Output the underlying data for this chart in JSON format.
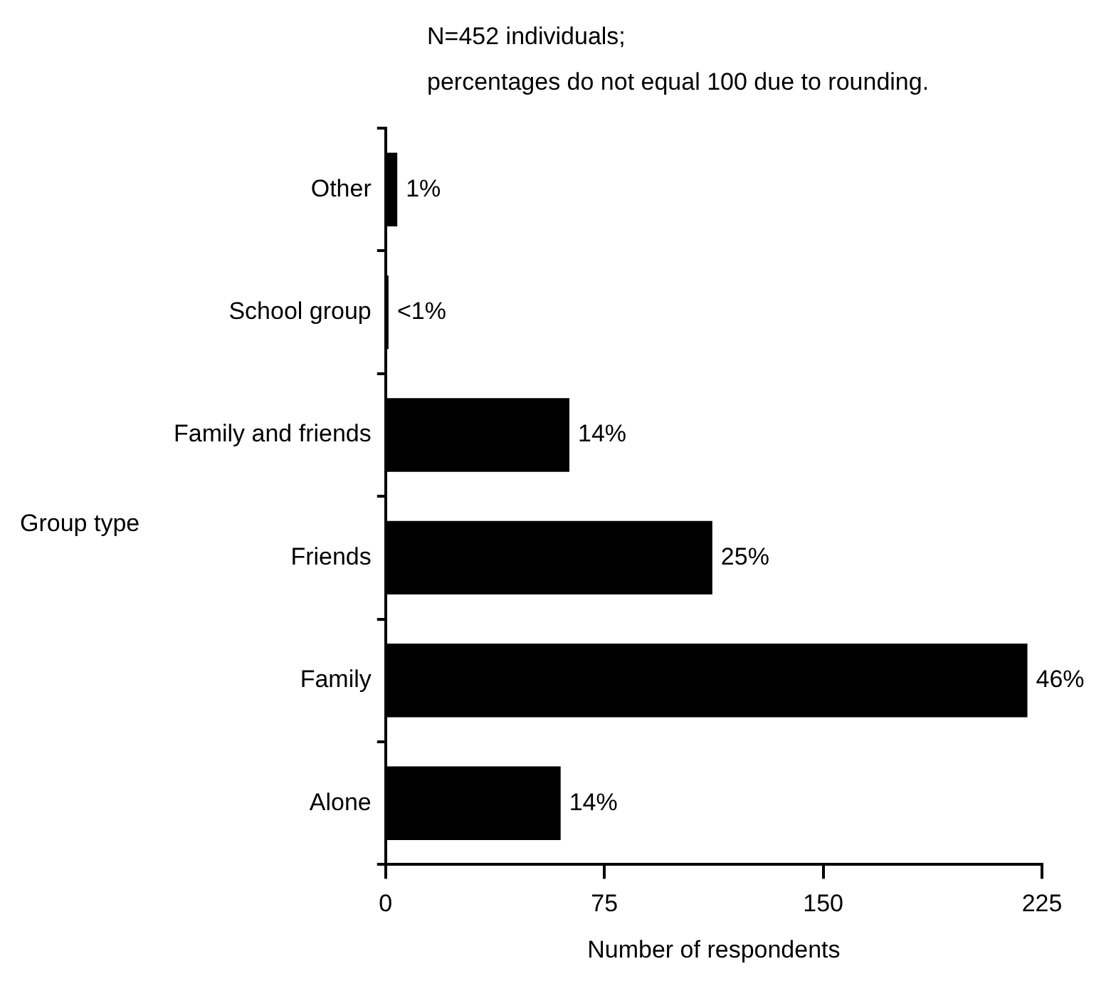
{
  "chart_data": {
    "type": "bar",
    "orientation": "horizontal",
    "categories": [
      "Other",
      "School group",
      "Family and friends",
      "Friends",
      "Family",
      "Alone"
    ],
    "values": [
      4,
      1,
      63,
      112,
      220,
      60
    ],
    "color": "#000000",
    "xlim": [
      0,
      225
    ],
    "xticks": [
      0,
      75,
      150,
      225
    ],
    "xlabel": "Number of respondents",
    "ylabel": "Group type",
    "annotations": [
      "N=452 individuals;",
      "percentages do not equal 100 due to rounding.",
      {
        "text": "1%",
        "x": 4,
        "y": "Other"
      },
      {
        "text": "<1%",
        "x": 1,
        "y": "School group"
      },
      {
        "text": "14%",
        "x": 63,
        "y": "Family and friends"
      },
      {
        "text": "25%",
        "x": 112,
        "y": "Friends"
      },
      {
        "text": "46%",
        "x": 220,
        "y": "Family"
      },
      {
        "text": "14%",
        "x": 60,
        "y": "Alone"
      }
    ],
    "grid": false,
    "legend": false
  }
}
